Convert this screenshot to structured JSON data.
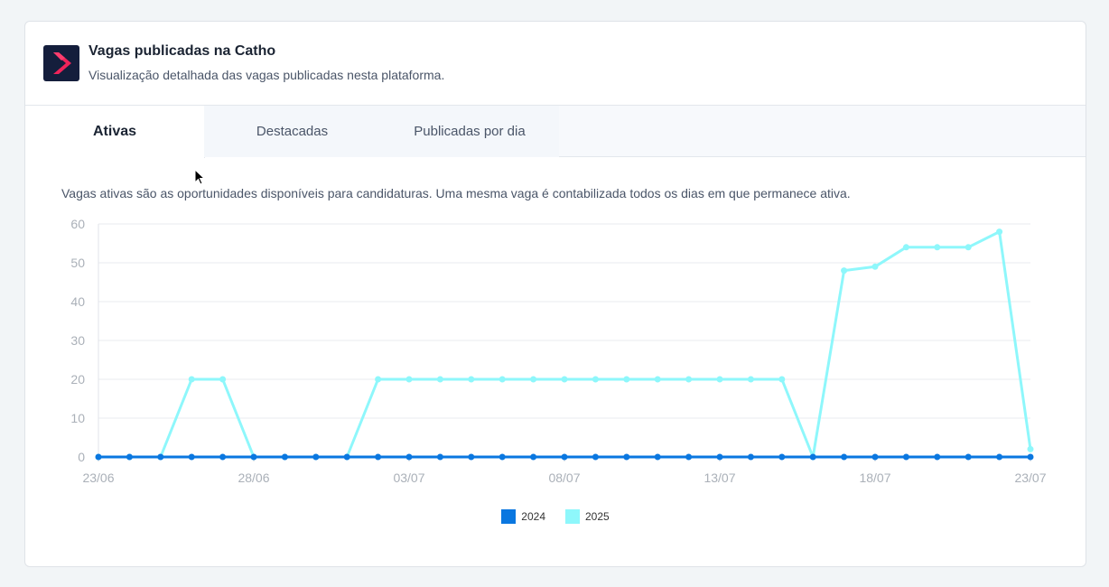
{
  "header": {
    "title": "Vagas publicadas na Catho",
    "subtitle": "Visualização detalhada das vagas publicadas nesta plataforma.",
    "logo_icon": "catho-logo-icon"
  },
  "tabs": [
    {
      "label": "Ativas",
      "active": true
    },
    {
      "label": "Destacadas",
      "active": false
    },
    {
      "label": "Publicadas por dia",
      "active": false
    }
  ],
  "description": "Vagas ativas são as oportunidades disponíveis para candidaturas. Uma mesma vaga é contabilizada todos os dias em que permanece ativa.",
  "chart_data": {
    "type": "line",
    "x": [
      "23/06",
      "24/06",
      "25/06",
      "26/06",
      "27/06",
      "28/06",
      "29/06",
      "30/06",
      "01/07",
      "02/07",
      "03/07",
      "04/07",
      "05/07",
      "06/07",
      "07/07",
      "08/07",
      "09/07",
      "10/07",
      "11/07",
      "12/07",
      "13/07",
      "14/07",
      "15/07",
      "16/07",
      "17/07",
      "18/07",
      "19/07",
      "20/07",
      "21/07",
      "22/07",
      "23/07"
    ],
    "x_tick_labels": [
      "23/06",
      "28/06",
      "03/07",
      "08/07",
      "13/07",
      "18/07",
      "23/07"
    ],
    "y_tick_labels": [
      "0",
      "10",
      "20",
      "30",
      "40",
      "50",
      "60"
    ],
    "ylim": [
      0,
      60
    ],
    "grid": true,
    "legend_position": "bottom-center",
    "series": [
      {
        "name": "2024",
        "color": "#0a77e0",
        "values": [
          0,
          0,
          0,
          0,
          0,
          0,
          0,
          0,
          0,
          0,
          0,
          0,
          0,
          0,
          0,
          0,
          0,
          0,
          0,
          0,
          0,
          0,
          0,
          0,
          0,
          0,
          0,
          0,
          0,
          0,
          0
        ]
      },
      {
        "name": "2025",
        "color": "#8ef7fb",
        "values": [
          0,
          0,
          0,
          20,
          20,
          0,
          0,
          0,
          0,
          20,
          20,
          20,
          20,
          20,
          20,
          20,
          20,
          20,
          20,
          20,
          20,
          20,
          20,
          0,
          48,
          49,
          54,
          54,
          54,
          58,
          2
        ]
      }
    ]
  }
}
